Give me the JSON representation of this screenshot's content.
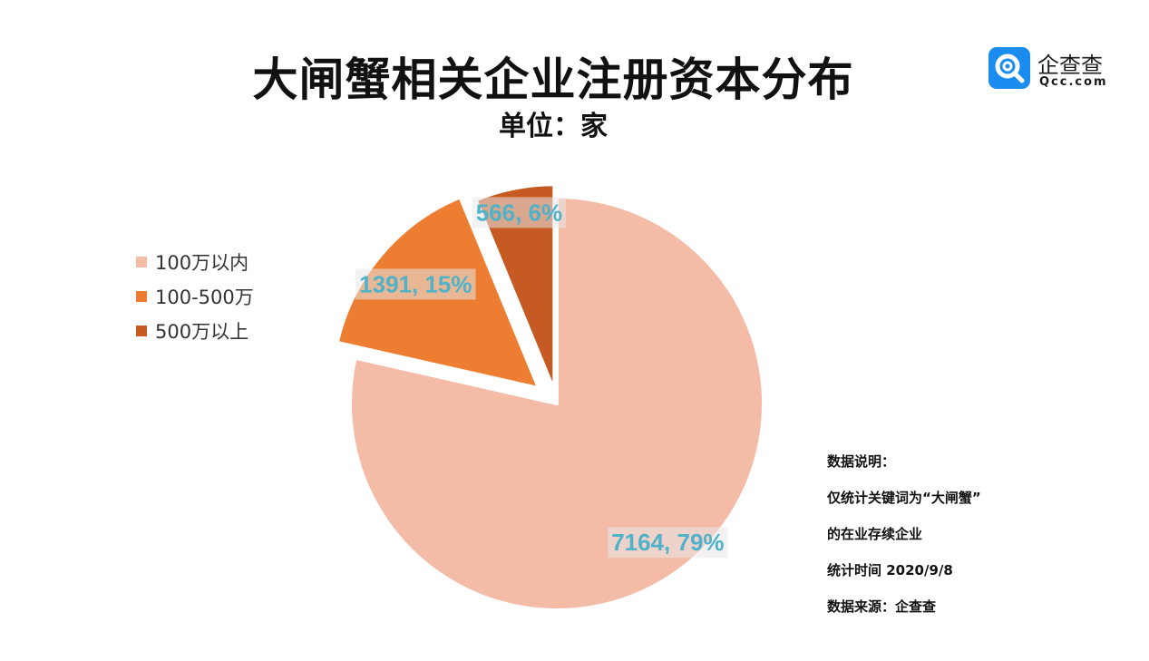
{
  "header": {
    "title": "大闸蟹相关企业注册资本分布",
    "subtitle": "单位：家"
  },
  "logo": {
    "name": "企查查",
    "domain": "Qcc.com",
    "icon": "qcc-magnifier-icon",
    "color": "#1a8cf0"
  },
  "notes": [
    "数据说明：",
    "仅统计关键词为“大闸蟹”",
    "的在业存续企业",
    "统计时间 2020/9/8",
    "数据来源：企查查"
  ],
  "chart_data": {
    "type": "pie",
    "title": "大闸蟹相关企业注册资本分布",
    "subtitle": "单位：家",
    "legend_position": "left",
    "slices": [
      {
        "name": "100万以内",
        "value": 7164,
        "percent": 79,
        "label": "7164, 79%",
        "color": "#f4bba6"
      },
      {
        "name": "100-500万",
        "value": 1391,
        "percent": 15,
        "label": "1391, 15%",
        "color": "#ed7d31"
      },
      {
        "name": "500万以上",
        "value": 566,
        "percent": 6,
        "label": "566, 6%",
        "color": "#c55a22"
      }
    ]
  }
}
